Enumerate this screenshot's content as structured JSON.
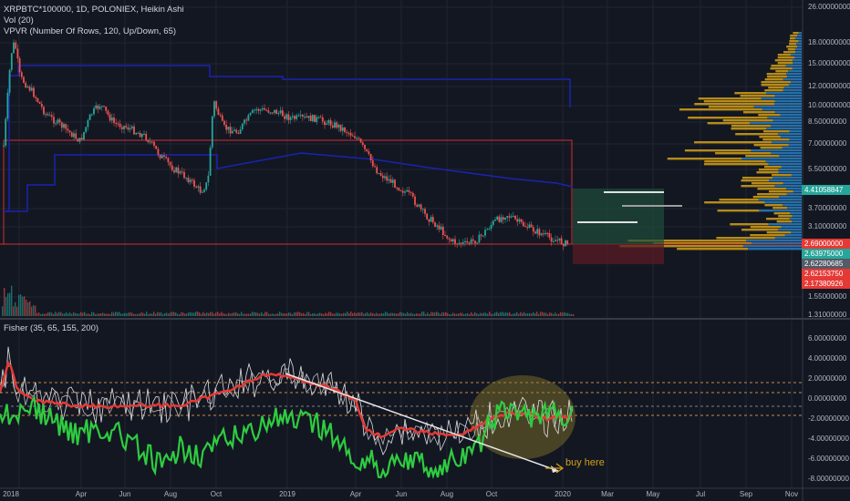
{
  "header": {
    "symbol_line": "XRPBTC*100000, 1D, POLONIEX, Heikin Ashi",
    "vol_line": "Vol (20)",
    "vpvr_line": "VPVR (Number Of Rows, 120, Up/Down, 65)",
    "fisher_line": "Fisher (35, 65, 155, 200)"
  },
  "price_axis": {
    "labels": [
      "26.00000000",
      "18.00000000",
      "15.00000000",
      "12.00000000",
      "10.00000000",
      "8.50000000",
      "7.00000000",
      "5.50000000",
      "3.70000000",
      "3.10000000",
      "1.55000000",
      "1.31000000"
    ]
  },
  "price_badges": [
    {
      "text": "4.41058847",
      "color": "#26a69a"
    },
    {
      "text": "2.69000000",
      "color": "#e53935"
    },
    {
      "text": "2.63975000",
      "color": "#26a69a"
    },
    {
      "text": "2.62280685",
      "color": "#555a66"
    },
    {
      "text": "2.62153750",
      "color": "#e53935"
    },
    {
      "text": "2.17380926",
      "color": "#e53935"
    }
  ],
  "fisher_axis": {
    "labels": [
      "6.00000000",
      "4.00000000",
      "2.00000000",
      "0.00000000",
      "-2.00000000",
      "-4.00000000",
      "-6.00000000",
      "-8.00000000"
    ]
  },
  "time_axis": {
    "labels": [
      "2018",
      "Apr",
      "Jun",
      "Aug",
      "Oct",
      "2019",
      "Apr",
      "Jun",
      "Aug",
      "Oct",
      "2020",
      "Mar",
      "May",
      "Jul",
      "Sep",
      "Nov"
    ]
  },
  "annotation": {
    "text": "buy here"
  },
  "colors": {
    "background": "#131722",
    "up": "#26a69a",
    "down": "#ef5350",
    "channel": "#1a23b0",
    "box": "#d32f2f",
    "fisher_green": "#2ecc40",
    "fisher_red": "#e53935",
    "vpvr_up": "#2a7fc1",
    "vpvr_down": "#d4a017"
  }
}
